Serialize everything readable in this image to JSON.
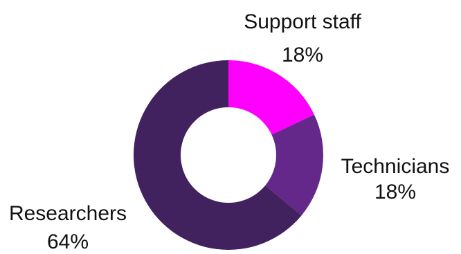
{
  "chart_data": {
    "type": "pie",
    "donut": true,
    "title": "",
    "slices": [
      {
        "label": "Support staff",
        "value": 18,
        "display": "18%",
        "color": "#ff00ff"
      },
      {
        "label": "Technicians",
        "value": 18,
        "display": "18%",
        "color": "#63288a"
      },
      {
        "label": "Researchers",
        "value": 64,
        "display": "64%",
        "color": "#41215e"
      }
    ],
    "legend": "none"
  }
}
